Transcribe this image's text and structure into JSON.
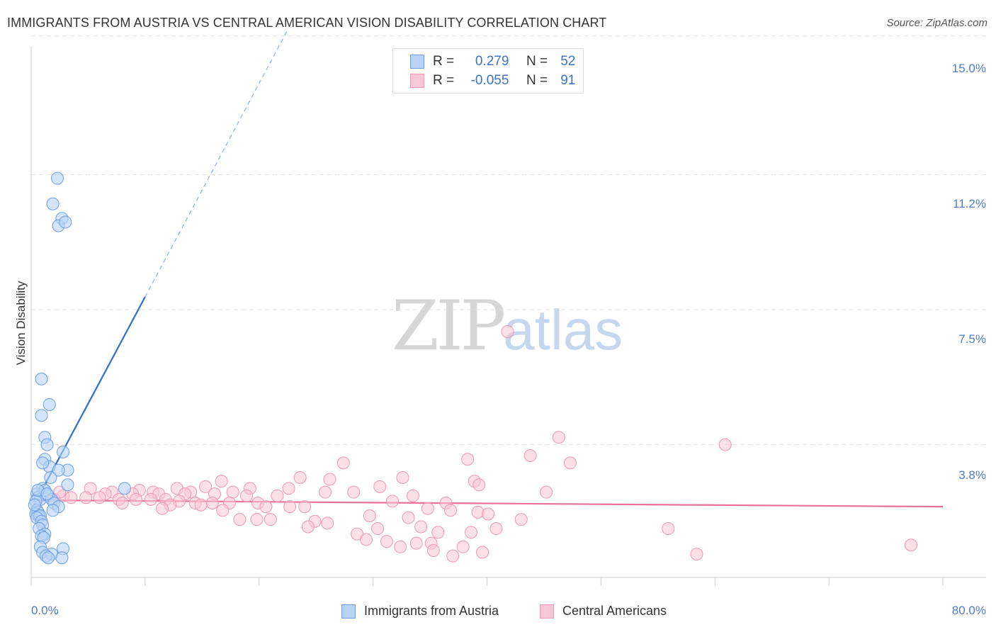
{
  "header": {
    "title": "IMMIGRANTS FROM AUSTRIA VS CENTRAL AMERICAN VISION DISABILITY CORRELATION CHART",
    "source": "Source: ZipAtlas.com"
  },
  "watermark": {
    "zip": "ZIP",
    "atlas": "atlas"
  },
  "legend": {
    "series1": {
      "r_label": "R =",
      "r_value": "0.279",
      "n_label": "N =",
      "n_value": "52"
    },
    "series2": {
      "r_label": "R =",
      "r_value": "-0.055",
      "n_label": "N =",
      "n_value": "91"
    }
  },
  "colors": {
    "blue_fill": "#b8d3f5",
    "blue_stroke": "#6b9ee3",
    "blue_line": "#2f6fd1",
    "pink_fill": "#f8c6d5",
    "pink_stroke": "#ec97b3",
    "pink_line": "#e8729a"
  },
  "chart_data": {
    "type": "scatter",
    "title": "IMMIGRANTS FROM AUSTRIA VS CENTRAL AMERICAN VISION DISABILITY CORRELATION CHART",
    "xlabel": "",
    "ylabel": "Vision Disability",
    "xlim": [
      0,
      80
    ],
    "ylim": [
      0,
      15.5
    ],
    "x_tick_labels": [
      "0.0%",
      "80.0%"
    ],
    "y_ticks": [
      3.8,
      7.5,
      11.2,
      15.0
    ],
    "y_tick_labels": [
      "3.8%",
      "7.5%",
      "11.2%",
      "15.0%"
    ],
    "legend_position": "top-center",
    "series": [
      {
        "name": "Immigrants from Austria",
        "r": 0.279,
        "n": 52,
        "trend": {
          "x0": 0,
          "y0": 2.0,
          "x1": 10,
          "y1": 7.85,
          "dashed_to_x": 22.5
        },
        "points": [
          [
            2.3,
            11.1
          ],
          [
            1.9,
            10.4
          ],
          [
            2.7,
            10.0
          ],
          [
            2.4,
            9.8
          ],
          [
            3.0,
            9.9
          ],
          [
            0.9,
            5.6
          ],
          [
            1.6,
            4.9
          ],
          [
            0.9,
            4.6
          ],
          [
            1.2,
            4.0
          ],
          [
            1.4,
            3.8
          ],
          [
            2.8,
            3.6
          ],
          [
            1.2,
            3.4
          ],
          [
            1.6,
            3.2
          ],
          [
            1.0,
            3.3
          ],
          [
            3.2,
            3.1
          ],
          [
            2.4,
            3.1
          ],
          [
            1.7,
            2.9
          ],
          [
            3.2,
            2.7
          ],
          [
            8.2,
            2.6
          ],
          [
            1.0,
            2.6
          ],
          [
            0.5,
            2.45
          ],
          [
            0.6,
            2.35
          ],
          [
            0.8,
            2.3
          ],
          [
            0.4,
            2.25
          ],
          [
            1.5,
            2.4
          ],
          [
            1.8,
            2.3
          ],
          [
            2.0,
            2.2
          ],
          [
            2.4,
            2.1
          ],
          [
            0.5,
            2.0
          ],
          [
            0.6,
            1.95
          ],
          [
            0.4,
            1.9
          ],
          [
            0.7,
            1.85
          ],
          [
            0.8,
            1.85
          ],
          [
            0.5,
            1.8
          ],
          [
            0.9,
            1.7
          ],
          [
            1.0,
            1.6
          ],
          [
            0.7,
            1.5
          ],
          [
            1.2,
            1.35
          ],
          [
            0.9,
            1.3
          ],
          [
            1.1,
            1.25
          ],
          [
            0.8,
            1.0
          ],
          [
            2.8,
            0.95
          ],
          [
            1.0,
            0.85
          ],
          [
            1.8,
            0.8
          ],
          [
            1.3,
            0.75
          ],
          [
            1.5,
            0.7
          ],
          [
            2.7,
            0.7
          ],
          [
            1.2,
            2.55
          ],
          [
            0.6,
            2.55
          ],
          [
            1.4,
            2.45
          ],
          [
            0.3,
            2.15
          ],
          [
            1.9,
            2.0
          ]
        ]
      },
      {
        "name": "Central Americans",
        "r": -0.055,
        "n": 91,
        "trend": {
          "x0": 0,
          "y0": 2.28,
          "x1": 80,
          "y1": 2.1
        },
        "points": [
          [
            41.8,
            6.9
          ],
          [
            46.3,
            4.0
          ],
          [
            60.9,
            3.8
          ],
          [
            43.8,
            3.5
          ],
          [
            38.3,
            3.4
          ],
          [
            47.3,
            3.3
          ],
          [
            27.4,
            3.3
          ],
          [
            32.6,
            2.9
          ],
          [
            23.6,
            2.9
          ],
          [
            26.2,
            2.85
          ],
          [
            16.7,
            2.8
          ],
          [
            38.9,
            2.8
          ],
          [
            39.3,
            2.7
          ],
          [
            15.3,
            2.65
          ],
          [
            30.6,
            2.65
          ],
          [
            19.2,
            2.6
          ],
          [
            22.6,
            2.6
          ],
          [
            12.8,
            2.6
          ],
          [
            5.2,
            2.6
          ],
          [
            9.5,
            2.55
          ],
          [
            7.1,
            2.5
          ],
          [
            10.7,
            2.5
          ],
          [
            14.0,
            2.5
          ],
          [
            17.7,
            2.5
          ],
          [
            25.8,
            2.5
          ],
          [
            28.3,
            2.5
          ],
          [
            45.2,
            2.5
          ],
          [
            6.5,
            2.45
          ],
          [
            8.9,
            2.45
          ],
          [
            11.2,
            2.45
          ],
          [
            13.5,
            2.45
          ],
          [
            16.1,
            2.45
          ],
          [
            18.9,
            2.4
          ],
          [
            21.6,
            2.4
          ],
          [
            33.5,
            2.4
          ],
          [
            2.8,
            2.4
          ],
          [
            3.5,
            2.35
          ],
          [
            4.8,
            2.35
          ],
          [
            6.0,
            2.35
          ],
          [
            7.7,
            2.3
          ],
          [
            9.2,
            2.3
          ],
          [
            10.5,
            2.3
          ],
          [
            11.8,
            2.3
          ],
          [
            13.0,
            2.25
          ],
          [
            14.4,
            2.2
          ],
          [
            15.9,
            2.2
          ],
          [
            17.4,
            2.2
          ],
          [
            19.9,
            2.2
          ],
          [
            31.7,
            2.25
          ],
          [
            36.4,
            2.2
          ],
          [
            2.0,
            2.3
          ],
          [
            8.0,
            2.2
          ],
          [
            12.2,
            2.15
          ],
          [
            14.9,
            2.15
          ],
          [
            20.6,
            2.1
          ],
          [
            22.7,
            2.1
          ],
          [
            24.0,
            2.1
          ],
          [
            34.8,
            2.05
          ],
          [
            36.8,
            2.0
          ],
          [
            39.2,
            1.95
          ],
          [
            11.5,
            2.05
          ],
          [
            29.7,
            1.85
          ],
          [
            33.1,
            1.8
          ],
          [
            18.3,
            1.75
          ],
          [
            19.8,
            1.75
          ],
          [
            21.0,
            1.75
          ],
          [
            24.9,
            1.7
          ],
          [
            24.3,
            1.55
          ],
          [
            34.2,
            1.55
          ],
          [
            40.8,
            1.5
          ],
          [
            35.7,
            1.4
          ],
          [
            38.6,
            1.4
          ],
          [
            30.4,
            1.5
          ],
          [
            28.6,
            1.35
          ],
          [
            29.4,
            1.2
          ],
          [
            31.2,
            1.15
          ],
          [
            32.4,
            1.0
          ],
          [
            33.8,
            1.1
          ],
          [
            35.1,
            1.1
          ],
          [
            37.9,
            1.0
          ],
          [
            35.3,
            0.9
          ],
          [
            39.6,
            0.85
          ],
          [
            37.0,
            0.75
          ],
          [
            58.4,
            0.8
          ],
          [
            77.2,
            1.05
          ],
          [
            55.9,
            1.5
          ],
          [
            43.0,
            1.75
          ],
          [
            26.0,
            1.65
          ],
          [
            40.1,
            1.9
          ],
          [
            16.8,
            2.0
          ],
          [
            2.5,
            2.5
          ]
        ]
      }
    ]
  },
  "bottom_legend": {
    "series1_label": "Immigrants from Austria",
    "series2_label": "Central Americans"
  }
}
